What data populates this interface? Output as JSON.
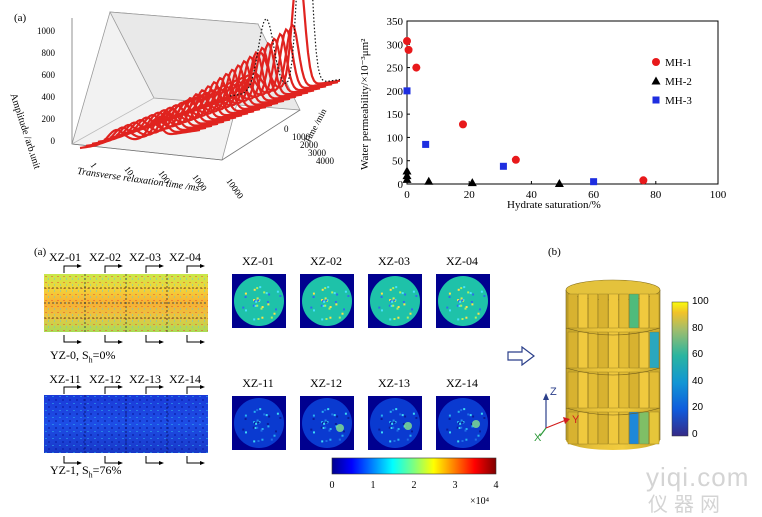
{
  "figure_top": {
    "panel_label": "(a)",
    "left_plot": {
      "z_label": "Amplitude /arb.unit",
      "z_ticks": [
        "1000",
        "800",
        "600",
        "400",
        "200",
        "0"
      ],
      "x_label": "Transverse relaxation time /ms",
      "x_ticks": [
        "1",
        "10",
        "100",
        "1000",
        "10000"
      ],
      "y_label": "Time /min",
      "y_ticks": [
        "0",
        "1000",
        "2000",
        "3000",
        "4000"
      ]
    }
  },
  "chart_data": {
    "type": "scatter",
    "title": "",
    "xlabel": "Hydrate saturation/%",
    "ylabel": "Water permeability/×10⁻³μm²",
    "xlim": [
      0,
      100
    ],
    "ylim": [
      0,
      350
    ],
    "x_ticks": [
      "0",
      "20",
      "40",
      "60",
      "80",
      "100"
    ],
    "y_ticks": [
      "0",
      "50",
      "100",
      "150",
      "200",
      "250",
      "300",
      "350"
    ],
    "legend_position": "top-right",
    "series": [
      {
        "name": "MH-1",
        "marker": "circle",
        "color": "#e8191b",
        "points": [
          [
            0,
            307
          ],
          [
            0.5,
            288
          ],
          [
            3,
            250
          ],
          [
            18,
            128
          ],
          [
            35,
            52
          ],
          [
            76,
            8
          ]
        ]
      },
      {
        "name": "MH-2",
        "marker": "triangle",
        "color": "#000000",
        "points": [
          [
            0,
            28
          ],
          [
            0,
            18
          ],
          [
            0,
            10
          ],
          [
            7,
            6
          ],
          [
            21,
            3
          ],
          [
            49,
            1
          ]
        ]
      },
      {
        "name": "MH-3",
        "marker": "square",
        "color": "#1e2ee0",
        "points": [
          [
            0,
            200
          ],
          [
            6,
            85
          ],
          [
            31,
            38
          ],
          [
            60,
            5
          ]
        ]
      }
    ]
  },
  "figure_bottom": {
    "panel_a_label": "(a)",
    "panel_b_label": "(b)",
    "row1": {
      "section_labels": [
        "XZ-01",
        "XZ-02",
        "XZ-03",
        "XZ-04"
      ],
      "slice_labels": [
        "XZ-01",
        "XZ-02",
        "XZ-03",
        "XZ-04"
      ],
      "caption_main": "YZ-0, S",
      "caption_sub": "h",
      "caption_rest": "=0%"
    },
    "row2": {
      "section_labels": [
        "XZ-11",
        "XZ-12",
        "XZ-13",
        "XZ-14"
      ],
      "slice_labels": [
        "XZ-11",
        "XZ-12",
        "XZ-13",
        "XZ-14"
      ],
      "caption_main": "YZ-1, S",
      "caption_sub": "h",
      "caption_rest": "=76%"
    },
    "colorbar": {
      "ticks": [
        "0",
        "1",
        "2",
        "3",
        "4"
      ],
      "exponent_label": "×10⁴"
    },
    "cylinder": {
      "axis_z": "Z",
      "axis_y": "Y",
      "axis_x": "X",
      "colorbar_ticks": [
        "100",
        "80",
        "60",
        "40",
        "20",
        "0"
      ]
    }
  },
  "watermark": {
    "latin": "yiqi.com",
    "cjk": "仪器网"
  }
}
